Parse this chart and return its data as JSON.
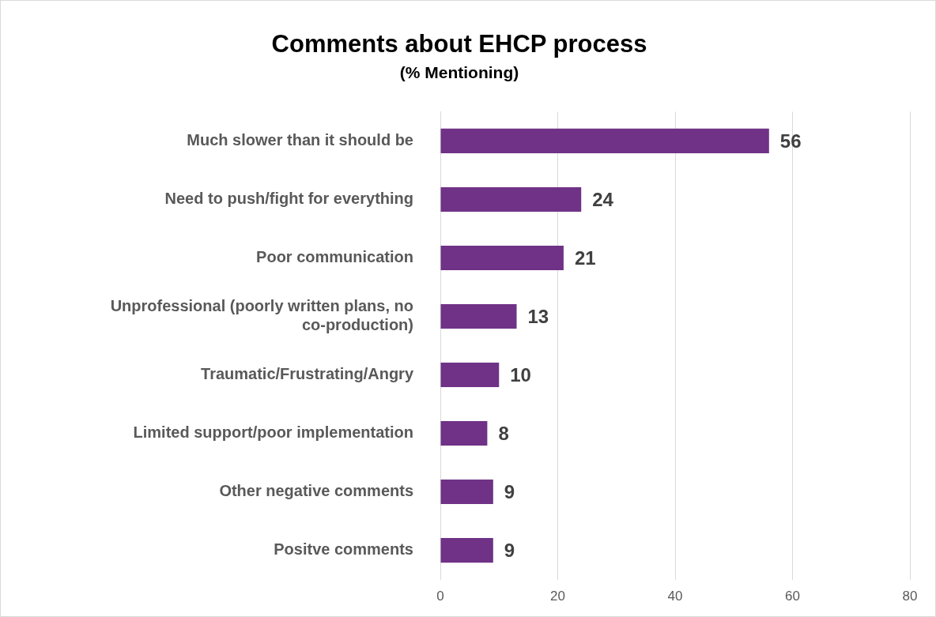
{
  "chart_data": {
    "type": "bar",
    "orientation": "horizontal",
    "title": "Comments about EHCP process",
    "subtitle": "(% Mentioning)",
    "categories": [
      "Much slower than it should be",
      "Need to push/fight for everything",
      "Poor communication",
      "Unprofessional (poorly written plans, no co-production)",
      "Traumatic/Frustrating/Angry",
      "Limited support/poor implementation",
      "Other negative comments",
      "Positve comments"
    ],
    "values": [
      56,
      24,
      21,
      13,
      10,
      8,
      9,
      9
    ],
    "color": "#6f3286",
    "xlim": [
      0,
      80
    ],
    "xticks": [
      0,
      20,
      40,
      60,
      80
    ],
    "grid": "x",
    "data_labels": true,
    "legend": false
  }
}
